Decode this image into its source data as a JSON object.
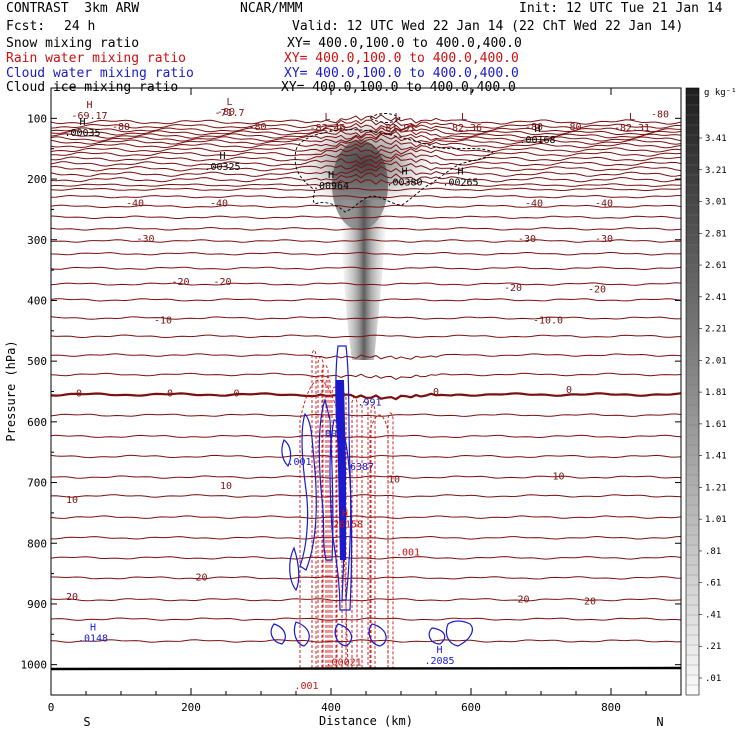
{
  "header": {
    "model": "CONTRAST  3km ARW",
    "org": "NCAR/MMM",
    "init": "Init: 12 UTC Tue 21 Jan 14",
    "fcst_label": "Fcst:",
    "fcst_value": "24 h",
    "valid": "Valid: 12 UTC Wed 22 Jan 14 (22 ChT Wed 22 Jan 14)",
    "fields": [
      {
        "name": "Snow mixing ratio",
        "xy": "XY= 400.0,100.0 to 400.0,400.0",
        "color": "#000000"
      },
      {
        "name": "Rain water mixing ratio",
        "xy": "XY= 400.0,100.0 to 400.0,400.0",
        "color": "#cc1111"
      },
      {
        "name": "Cloud water mixing ratio",
        "xy": "XY= 400.0,100.0 to 400.0,400.0",
        "color": "#1a1acc"
      },
      {
        "name": "Cloud ice mixing ratio",
        "xy": "XY= 400.0,100.0 to 400.0,400.0",
        "color": "#000000"
      }
    ]
  },
  "colors": {
    "temperature": "#7a1010",
    "rain": "#cc1111",
    "cloud_water": "#1a1acc",
    "ice": "#000000",
    "snow_shade": "#555555"
  },
  "chart_data": {
    "type": "cross-section",
    "xlabel": "Distance (km)",
    "ylabel": "Pressure (hPa)",
    "xlim": [
      0,
      900
    ],
    "ylim": [
      1050,
      50
    ],
    "x_ticks": [
      0,
      200,
      400,
      600,
      800
    ],
    "y_ticks": [
      100,
      200,
      300,
      400,
      500,
      600,
      700,
      800,
      900,
      1000
    ],
    "x_end_labels": {
      "left": "S",
      "right": "N"
    },
    "colorbar": {
      "unit": "g kg⁻¹",
      "levels": [
        "3.41",
        "3.21",
        "3.01",
        "2.81",
        "2.61",
        "2.41",
        "2.21",
        "2.01",
        "1.81",
        "1.61",
        "1.41",
        "1.21",
        "1.01",
        ".81",
        ".61",
        ".41",
        ".21",
        ".01"
      ]
    },
    "temperature_contour_labels": [
      {
        "x": 250,
        "p": 88,
        "text": "-80"
      },
      {
        "x": 100,
        "p": 113,
        "text": "-80"
      },
      {
        "x": 295,
        "p": 113,
        "text": "-80"
      },
      {
        "x": 690,
        "p": 113,
        "text": "-80"
      },
      {
        "x": 745,
        "p": 113,
        "text": "-80"
      },
      {
        "x": 870,
        "p": 92,
        "text": "-80"
      },
      {
        "x": 120,
        "p": 239,
        "text": "-40"
      },
      {
        "x": 240,
        "p": 239,
        "text": "-40"
      },
      {
        "x": 690,
        "p": 239,
        "text": "-40"
      },
      {
        "x": 790,
        "p": 239,
        "text": "-40"
      },
      {
        "x": 135,
        "p": 297,
        "text": "-30"
      },
      {
        "x": 680,
        "p": 297,
        "text": "-30"
      },
      {
        "x": 790,
        "p": 297,
        "text": "-30"
      },
      {
        "x": 185,
        "p": 368,
        "text": "-20"
      },
      {
        "x": 245,
        "p": 368,
        "text": "-20"
      },
      {
        "x": 660,
        "p": 378,
        "text": "-20"
      },
      {
        "x": 780,
        "p": 380,
        "text": "-20"
      },
      {
        "x": 160,
        "p": 431,
        "text": "-10"
      },
      {
        "x": 710,
        "p": 431,
        "text": "-10.0"
      },
      {
        "x": 40,
        "p": 552,
        "text": "0"
      },
      {
        "x": 170,
        "p": 552,
        "text": "0"
      },
      {
        "x": 265,
        "p": 552,
        "text": "0"
      },
      {
        "x": 550,
        "p": 549,
        "text": "0"
      },
      {
        "x": 740,
        "p": 546,
        "text": "0"
      },
      {
        "x": 30,
        "p": 727,
        "text": "10"
      },
      {
        "x": 250,
        "p": 704,
        "text": "10"
      },
      {
        "x": 490,
        "p": 693,
        "text": "10"
      },
      {
        "x": 725,
        "p": 688,
        "text": "10"
      },
      {
        "x": 30,
        "p": 887,
        "text": "20"
      },
      {
        "x": 215,
        "p": 855,
        "text": "20"
      },
      {
        "x": 675,
        "p": 891,
        "text": "20"
      },
      {
        "x": 770,
        "p": 894,
        "text": "20"
      }
    ],
    "extrema_labels": [
      {
        "x": 55,
        "p": 93,
        "mark": "H",
        "value": "-69.17",
        "color": "#7a1010"
      },
      {
        "x": 255,
        "p": 88,
        "mark": "L",
        "value": "-71.7",
        "color": "#7a1010"
      },
      {
        "x": 395,
        "p": 113,
        "mark": "L",
        "value": "-82.46",
        "color": "#7a1010"
      },
      {
        "x": 495,
        "p": 113,
        "mark": "L",
        "value": "-81.91",
        "color": "#7a1010"
      },
      {
        "x": 590,
        "p": 113,
        "mark": "L",
        "value": "-82.36",
        "color": "#7a1010"
      },
      {
        "x": 830,
        "p": 113,
        "mark": "L",
        "value": "-82.31",
        "color": "#7a1010"
      },
      {
        "x": 45,
        "p": 121,
        "mark": "H",
        "value": ".00035",
        "color": "#000000"
      },
      {
        "x": 245,
        "p": 177,
        "mark": "H",
        "value": ".00325",
        "color": "#000000"
      },
      {
        "x": 400,
        "p": 208,
        "mark": "H",
        "value": ".00964",
        "color": "#000000"
      },
      {
        "x": 505,
        "p": 202,
        "mark": "H",
        "value": ".00380",
        "color": "#000000"
      },
      {
        "x": 585,
        "p": 202,
        "mark": "H",
        "value": ".00265",
        "color": "#000000"
      },
      {
        "x": 695,
        "p": 132,
        "mark": "H",
        "value": ".00168",
        "color": "#000000"
      },
      {
        "x": 455,
        "p": 565,
        "mark": "",
        "value": ".991",
        "color": "#1a1acc"
      },
      {
        "x": 400,
        "p": 617,
        "mark": "",
        "value": ".001",
        "color": "#1a1acc"
      },
      {
        "x": 355,
        "p": 663,
        "mark": "",
        "value": ".001",
        "color": "#1a1acc"
      },
      {
        "x": 440,
        "p": 671,
        "mark": "",
        "value": ".6387",
        "color": "#1a1acc"
      },
      {
        "x": 420,
        "p": 766,
        "mark": "H",
        "value": ".26158",
        "color": "#cc1111"
      },
      {
        "x": 510,
        "p": 812,
        "mark": "",
        "value": ".001",
        "color": "#cc1111"
      },
      {
        "x": 60,
        "p": 954,
        "mark": "H",
        "value": ".0148",
        "color": "#1a1acc"
      },
      {
        "x": 418,
        "p": 993,
        "mark": "",
        "value": ".00021",
        "color": "#cc1111"
      },
      {
        "x": 555,
        "p": 991,
        "mark": "H",
        "value": ".2085",
        "color": "#1a1acc"
      },
      {
        "x": 365,
        "p": 1032,
        "mark": "",
        "value": ".001",
        "color": "#cc1111"
      }
    ]
  }
}
